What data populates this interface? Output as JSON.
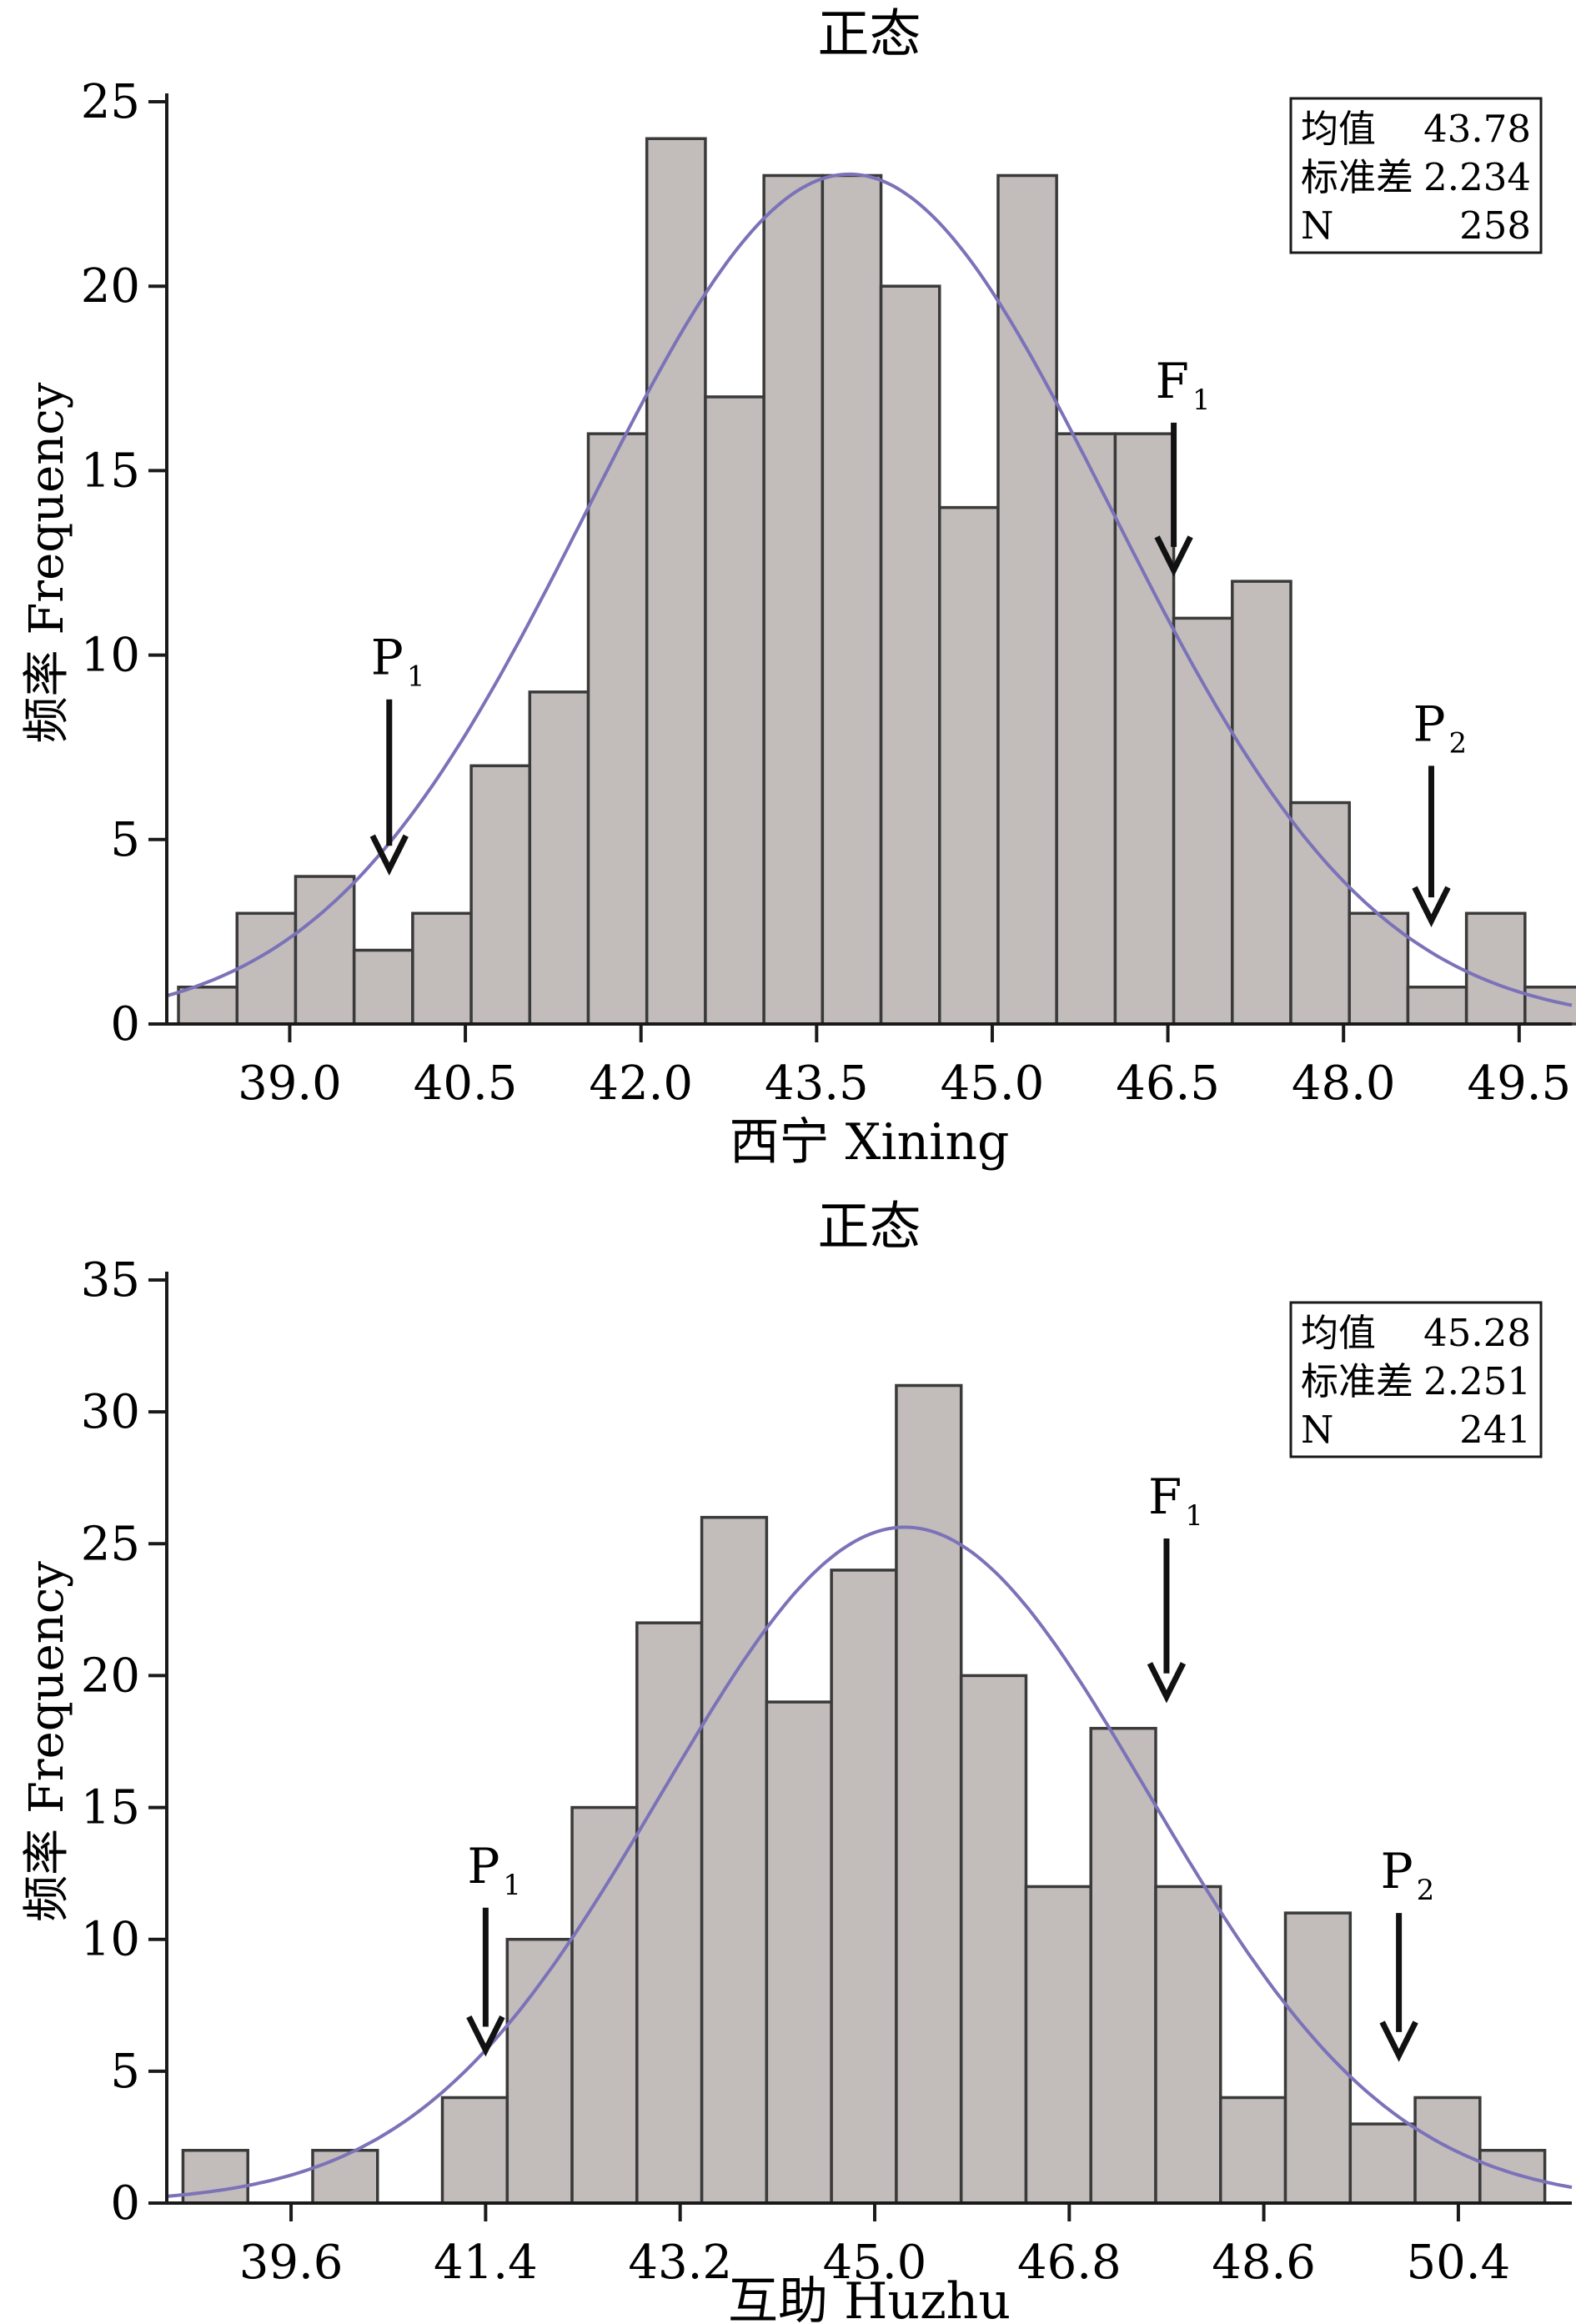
{
  "chart_data": [
    {
      "type": "bar",
      "title": "正态",
      "xlabel": "西宁 Xining",
      "ylabel": "频率 Frequency",
      "xlim": [
        37.95,
        49.95
      ],
      "ylim": [
        0,
        25
      ],
      "yticks": [
        0,
        5,
        10,
        15,
        20,
        25
      ],
      "xticks": [
        "39.0",
        "40.5",
        "42.0",
        "43.5",
        "45.0",
        "46.5",
        "48.0",
        "49.5"
      ],
      "bin_start": 38.05,
      "bin_width": 0.5,
      "values": [
        1,
        3,
        4,
        2,
        3,
        7,
        9,
        16,
        24,
        17,
        23,
        23,
        20,
        14,
        23,
        16,
        16,
        11,
        12,
        6,
        3,
        1,
        3,
        1
      ],
      "curve": {
        "mean": 43.78,
        "std": 2.234,
        "n": 258,
        "color": "#7b72b8"
      },
      "bar_color": "#c2bcbb",
      "stats": [
        {
          "label": "均值",
          "value": "43.78"
        },
        {
          "label": "标准差",
          "value": "2.234"
        },
        {
          "label": "N",
          "value": "258"
        }
      ],
      "annotations": [
        {
          "label": "P",
          "sub": "1",
          "x": 39.85,
          "y_top": 8.8,
          "y_bottom": 4.2
        },
        {
          "label": "F",
          "sub": "1",
          "x": 46.55,
          "y_top": 16.3,
          "y_bottom": 12.3
        },
        {
          "label": "P",
          "sub": "2",
          "x": 48.75,
          "y_top": 7.0,
          "y_bottom": 2.8
        }
      ],
      "grid": false
    },
    {
      "type": "bar",
      "title": "正态",
      "xlabel": "互助 Huzhu",
      "ylabel": "频率 Frequency",
      "xlim": [
        38.45,
        51.45
      ],
      "ylim": [
        0,
        35
      ],
      "yticks": [
        0,
        5,
        10,
        15,
        20,
        25,
        30,
        35
      ],
      "xticks": [
        "39.6",
        "41.4",
        "43.2",
        "45.0",
        "46.8",
        "48.6",
        "50.4"
      ],
      "bin_start": 38.6,
      "bin_width": 0.6,
      "values": [
        2,
        0,
        2,
        0,
        4,
        10,
        15,
        22,
        26,
        19,
        24,
        31,
        20,
        12,
        18,
        12,
        4,
        11,
        3,
        4,
        2
      ],
      "curve": {
        "mean": 45.28,
        "std": 2.251,
        "n": 241,
        "color": "#7b72b8"
      },
      "bar_color": "#c2bcbb",
      "stats": [
        {
          "label": "均值",
          "value": "45.28"
        },
        {
          "label": "标准差",
          "value": "2.251"
        },
        {
          "label": "N",
          "value": "241"
        }
      ],
      "annotations": [
        {
          "label": "P",
          "sub": "1",
          "x": 41.4,
          "y_top": 11.2,
          "y_bottom": 5.8
        },
        {
          "label": "F",
          "sub": "1",
          "x": 47.7,
          "y_top": 25.2,
          "y_bottom": 19.2
        },
        {
          "label": "P",
          "sub": "2",
          "x": 49.85,
          "y_top": 11.0,
          "y_bottom": 5.6
        }
      ],
      "grid": false
    }
  ]
}
